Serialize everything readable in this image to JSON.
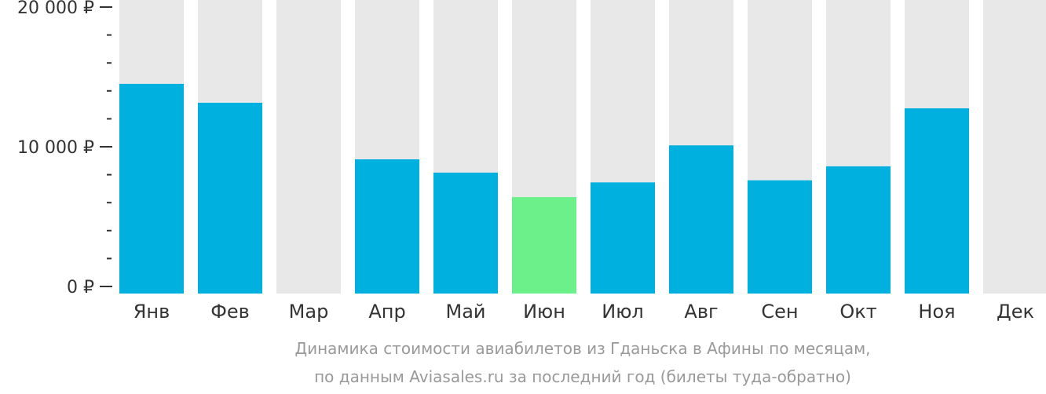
{
  "chart_data": {
    "type": "bar",
    "categories": [
      "Янв",
      "Фев",
      "Мар",
      "Апр",
      "Май",
      "Июн",
      "Июл",
      "Авг",
      "Сен",
      "Окт",
      "Ноя",
      "Дек"
    ],
    "values": [
      14500,
      13150,
      null,
      9100,
      8150,
      6400,
      7450,
      10100,
      7600,
      8600,
      12750,
      null
    ],
    "highlight_index": 5,
    "ylim": [
      0,
      20000
    ],
    "yticks": [
      {
        "value": 0,
        "label": "0 ₽"
      },
      {
        "value": 10000,
        "label": "10 000 ₽"
      },
      {
        "value": 20000,
        "label": "20 000 ₽"
      }
    ],
    "minor_ytick_step": 2000,
    "colors": {
      "bar": "#00b0de",
      "highlight": "#6cf08a",
      "background_bar": "#e8e8e8",
      "axis": "#333333"
    }
  },
  "caption": {
    "line1": "Динамика стоимости авиабилетов из Гданьска в Афины по месяцам,",
    "line2": "по данным Aviasales.ru за последний год (билеты туда-обратно)"
  }
}
